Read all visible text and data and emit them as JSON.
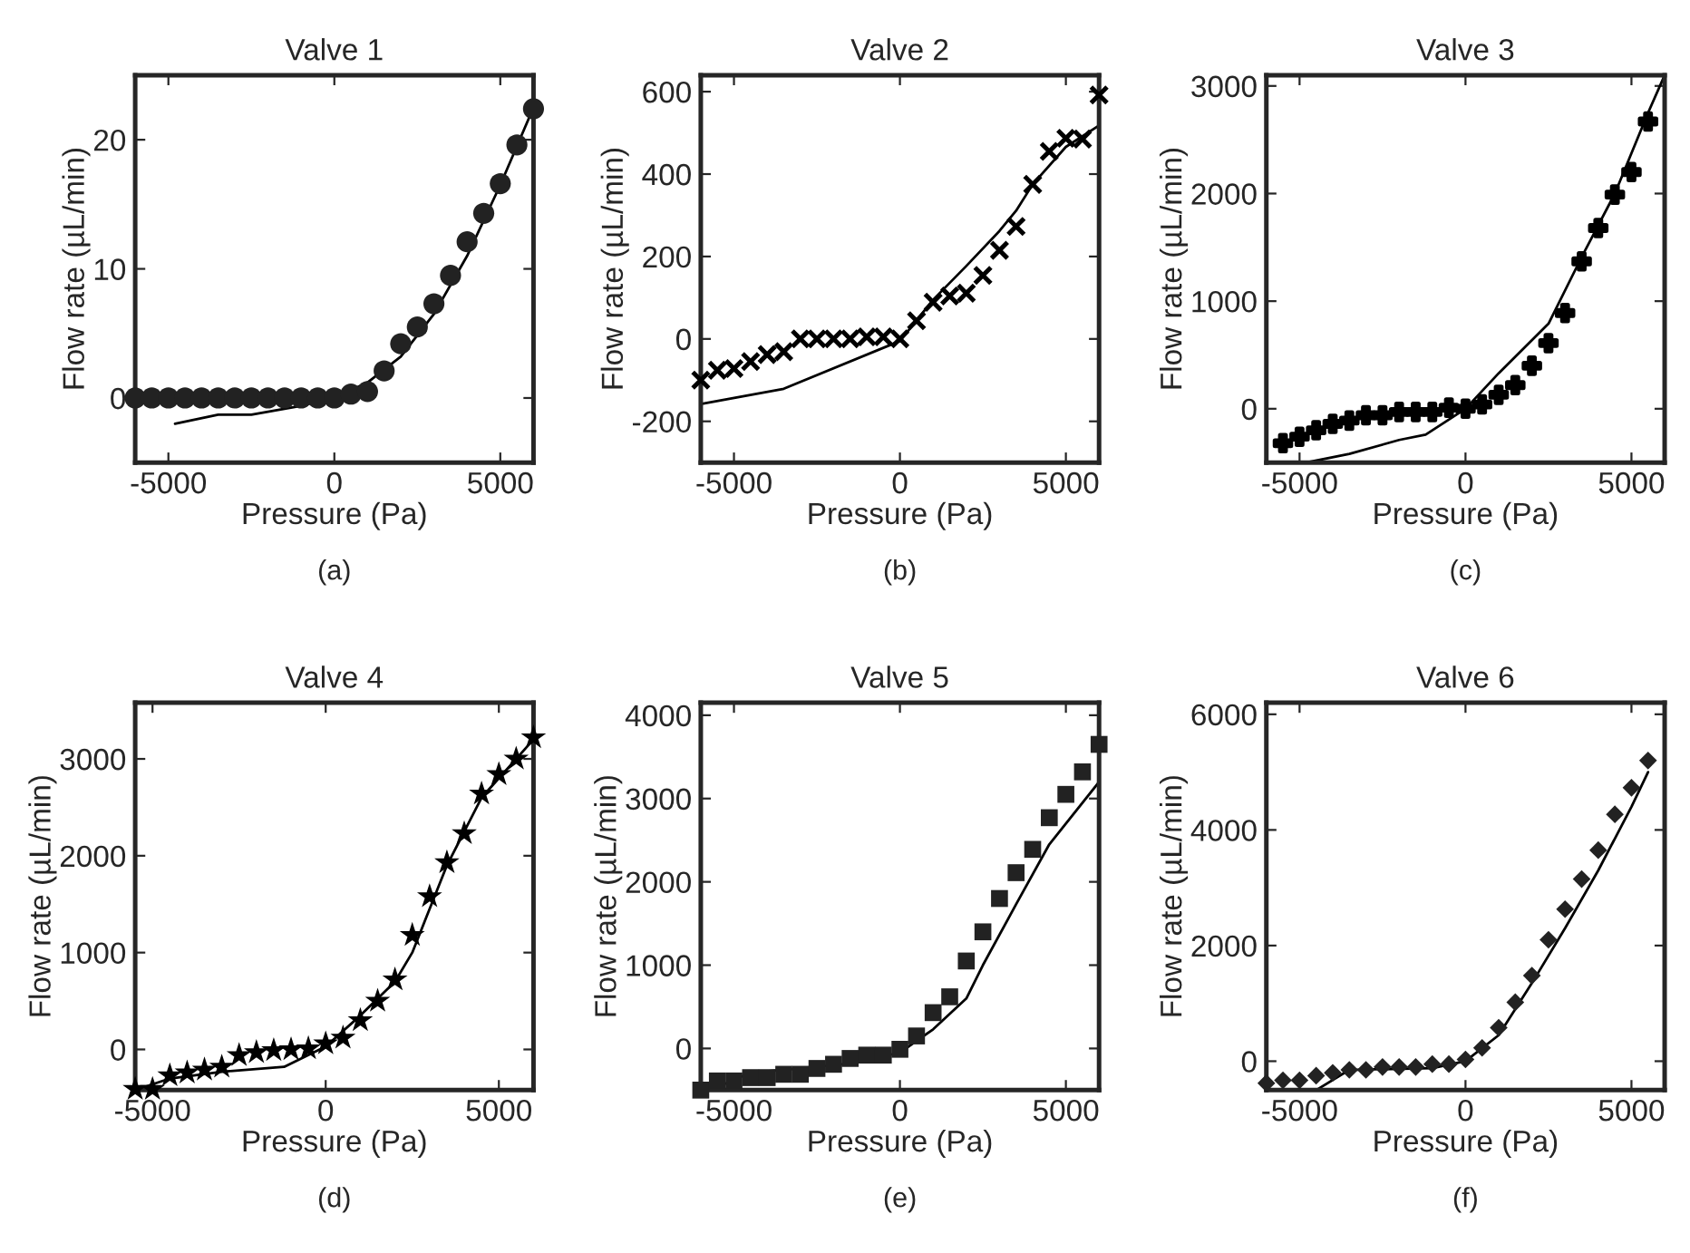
{
  "chart_data": [
    {
      "type": "scatter",
      "title": "Valve 1",
      "xlabel": "Pressure (Pa)",
      "ylabel": "Flow rate (µL/min)",
      "annotations": [
        "(a)"
      ],
      "xlim": [
        -6000,
        6000
      ],
      "ylim": [
        -5,
        25
      ],
      "xticks": [
        -5000,
        0,
        5000
      ],
      "yticks": [
        0,
        10,
        20
      ],
      "grid": false,
      "legend": false,
      "series": [
        {
          "marker": "circle",
          "color": "#222222",
          "x": [
            -6000,
            -5500,
            -5000,
            -4500,
            -4000,
            -3500,
            -3000,
            -2500,
            -2000,
            -1500,
            -1000,
            -500,
            0,
            500,
            1000,
            1500,
            2000,
            2500,
            3000,
            3500,
            4000,
            4500,
            5000,
            5500,
            6000
          ],
          "values": [
            0,
            0,
            0,
            0,
            0,
            0,
            0,
            0,
            0,
            0,
            0,
            0,
            0,
            0.3,
            0.5,
            2.1,
            4.2,
            5.5,
            7.3,
            9.5,
            12.1,
            14.3,
            16.6,
            19.6,
            22.4
          ]
        },
        {
          "type": "line",
          "marker": "none",
          "color": "#000000",
          "x": [
            -4800,
            -3500,
            -2500,
            -1000,
            0,
            1000,
            2000,
            3000,
            4000,
            5000,
            6000
          ],
          "values": [
            -2.0,
            -1.3,
            -1.3,
            -0.6,
            0,
            1.2,
            3.2,
            6.5,
            11,
            16.5,
            22.5
          ]
        }
      ]
    },
    {
      "type": "scatter",
      "title": "Valve 2",
      "xlabel": "Pressure (Pa)",
      "ylabel": "Flow rate (µL/min)",
      "annotations": [
        "(b)"
      ],
      "xlim": [
        -6000,
        6000
      ],
      "ylim": [
        -300,
        640
      ],
      "xticks": [
        -5000,
        0,
        5000
      ],
      "yticks": [
        -200,
        0,
        200,
        400,
        600
      ],
      "grid": false,
      "legend": false,
      "series": [
        {
          "marker": "cross",
          "color": "#000000",
          "x": [
            -6000,
            -5500,
            -5000,
            -4500,
            -4000,
            -3500,
            -3000,
            -2500,
            -2000,
            -1500,
            -1000,
            -500,
            0,
            500,
            1000,
            1500,
            2000,
            2500,
            3000,
            3500,
            4000,
            4500,
            5000,
            5500,
            6000
          ],
          "values": [
            -100,
            -76,
            -72,
            -55,
            -38,
            -31,
            0,
            0,
            0,
            0,
            5,
            5,
            0,
            44,
            89,
            104,
            111,
            154,
            215,
            273,
            375,
            455,
            487,
            485,
            592
          ]
        },
        {
          "type": "line",
          "marker": "none",
          "color": "#000000",
          "x": [
            -6000,
            -3500,
            0,
            1000,
            2000,
            3000,
            3500,
            4000,
            5000,
            6000
          ],
          "values": [
            -158,
            -121,
            -5,
            95,
            177,
            262,
            311,
            375,
            466,
            518
          ]
        }
      ]
    },
    {
      "type": "scatter",
      "title": "Valve 3",
      "xlabel": "Pressure (Pa)",
      "ylabel": "Flow rate (µL/min)",
      "annotations": [
        "(c)"
      ],
      "xlim": [
        -6000,
        6000
      ],
      "ylim": [
        -500,
        3100
      ],
      "xticks": [
        -5000,
        0,
        5000
      ],
      "yticks": [
        0,
        1000,
        2000,
        3000
      ],
      "grid": false,
      "legend": false,
      "series": [
        {
          "marker": "plus",
          "color": "#000000",
          "x": [
            -5500,
            -5000,
            -4500,
            -4000,
            -3500,
            -3000,
            -2500,
            -2000,
            -1500,
            -1000,
            -500,
            0,
            500,
            1000,
            1500,
            2000,
            2500,
            3000,
            3500,
            4000,
            4500,
            5000,
            5500
          ],
          "values": [
            -320,
            -260,
            -200,
            -140,
            -110,
            -60,
            -60,
            -30,
            -30,
            -30,
            10,
            0,
            40,
            130,
            220,
            400,
            610,
            890,
            1370,
            1680,
            1990,
            2200,
            2670
          ]
        },
        {
          "type": "line",
          "marker": "none",
          "color": "#000000",
          "x": [
            -4800,
            -3500,
            -2000,
            -1200,
            0,
            1000,
            2500,
            3500,
            4500,
            5500,
            6000
          ],
          "values": [
            -500,
            -420,
            -290,
            -240,
            0,
            330,
            790,
            1410,
            2000,
            2750,
            3100
          ]
        }
      ]
    },
    {
      "type": "scatter",
      "title": "Valve 4",
      "xlabel": "Pressure (Pa)",
      "ylabel": "Flow rate (µL/min)",
      "annotations": [
        "(d)"
      ],
      "xlim": [
        -5500,
        6000
      ],
      "ylim": [
        -420,
        3580
      ],
      "xticks": [
        -5000,
        0,
        5000
      ],
      "yticks": [
        0,
        1000,
        2000,
        3000
      ],
      "grid": false,
      "legend": false,
      "series": [
        {
          "marker": "star",
          "color": "#000000",
          "x": [
            -5500,
            -5000,
            -4500,
            -4000,
            -3500,
            -3000,
            -2500,
            -2000,
            -1500,
            -1000,
            -500,
            0,
            500,
            1000,
            1500,
            2000,
            2500,
            3000,
            3500,
            4000,
            4500,
            5000,
            5500,
            6000
          ],
          "values": [
            -410,
            -410,
            -270,
            -240,
            -210,
            -180,
            -60,
            -30,
            -10,
            0,
            10,
            60,
            120,
            300,
            500,
            720,
            1180,
            1580,
            1930,
            2230,
            2640,
            2840,
            3000,
            3220
          ]
        },
        {
          "type": "line",
          "marker": "none",
          "color": "#000000",
          "x": [
            -5500,
            -4500,
            -3000,
            -1200,
            0,
            1000,
            2000,
            2500,
            3500,
            4500,
            6000
          ],
          "values": [
            -420,
            -300,
            -230,
            -180,
            30,
            350,
            700,
            1000,
            1900,
            2600,
            3200
          ]
        }
      ]
    },
    {
      "type": "scatter",
      "title": "Valve 5",
      "xlabel": "Pressure (Pa)",
      "ylabel": "Flow rate (µL/min)",
      "annotations": [
        "(e)"
      ],
      "xlim": [
        -6000,
        6000
      ],
      "ylim": [
        -500,
        4150
      ],
      "xticks": [
        -5000,
        0,
        5000
      ],
      "yticks": [
        0,
        1000,
        2000,
        3000,
        4000
      ],
      "grid": false,
      "legend": false,
      "series": [
        {
          "marker": "square",
          "color": "#222222",
          "x": [
            -6000,
            -5500,
            -5000,
            -4500,
            -4000,
            -3500,
            -3000,
            -2500,
            -2000,
            -1500,
            -1000,
            -500,
            0,
            500,
            1000,
            1500,
            2000,
            2500,
            3000,
            3500,
            4000,
            4500,
            5000,
            5500,
            6000
          ],
          "values": [
            -500,
            -390,
            -390,
            -350,
            -350,
            -310,
            -310,
            -240,
            -190,
            -120,
            -80,
            -80,
            -10,
            150,
            430,
            620,
            1050,
            1400,
            1800,
            2110,
            2390,
            2770,
            3050,
            3320,
            3650
          ]
        },
        {
          "type": "line",
          "marker": "none",
          "color": "#000000",
          "x": [
            -5700,
            -4500,
            -3000,
            -1500,
            0,
            1000,
            2000,
            2500,
            3500,
            4500,
            6000
          ],
          "values": [
            -500,
            -290,
            -240,
            -180,
            -50,
            230,
            600,
            1000,
            1730,
            2450,
            3200
          ]
        }
      ]
    },
    {
      "type": "scatter",
      "title": "Valve 6",
      "xlabel": "Pressure (Pa)",
      "ylabel": "Flow rate (µL/min)",
      "annotations": [
        "(f)"
      ],
      "xlim": [
        -6000,
        6000
      ],
      "ylim": [
        -500,
        6200
      ],
      "xticks": [
        -5000,
        0,
        5000
      ],
      "yticks": [
        0,
        2000,
        4000,
        6000
      ],
      "grid": false,
      "legend": false,
      "series": [
        {
          "marker": "diamond",
          "color": "#222222",
          "x": [
            -6000,
            -5500,
            -5000,
            -4500,
            -4000,
            -3500,
            -3000,
            -2500,
            -2000,
            -1500,
            -1000,
            -500,
            0,
            500,
            1000,
            1500,
            2000,
            2500,
            3000,
            3500,
            4000,
            4500,
            5000,
            5500
          ],
          "values": [
            -380,
            -330,
            -330,
            -250,
            -200,
            -150,
            -150,
            -100,
            -100,
            -100,
            -50,
            -50,
            30,
            230,
            580,
            1020,
            1480,
            2100,
            2630,
            3150,
            3650,
            4270,
            4730,
            5200
          ]
        },
        {
          "type": "line",
          "marker": "none",
          "color": "#000000",
          "x": [
            -4500,
            -3500,
            -1000,
            0,
            1000,
            2000,
            3000,
            4000,
            5000,
            5500
          ],
          "values": [
            -500,
            -150,
            -120,
            0,
            450,
            1350,
            2300,
            3300,
            4400,
            5000
          ]
        }
      ]
    }
  ]
}
